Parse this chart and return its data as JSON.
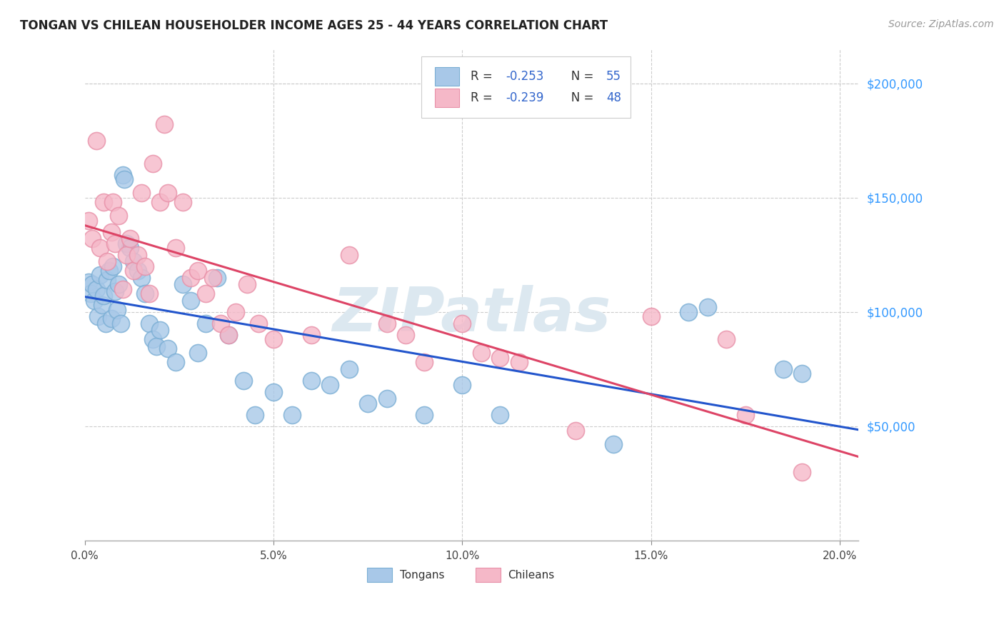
{
  "title": "TONGAN VS CHILEAN HOUSEHOLDER INCOME AGES 25 - 44 YEARS CORRELATION CHART",
  "source": "Source: ZipAtlas.com",
  "xlabel_ticks": [
    "0.0%",
    "5.0%",
    "10.0%",
    "15.0%",
    "20.0%"
  ],
  "xlabel_vals": [
    0.0,
    5.0,
    10.0,
    15.0,
    20.0
  ],
  "ylabel_ticks": [
    "$50,000",
    "$100,000",
    "$150,000",
    "$200,000"
  ],
  "ylabel_vals": [
    50000,
    100000,
    150000,
    200000
  ],
  "xmin": 0.0,
  "xmax": 20.5,
  "ymin": 0,
  "ymax": 215000,
  "tongan_R": -0.253,
  "tongan_N": 55,
  "chilean_R": -0.239,
  "chilean_N": 48,
  "tongan_color": "#a8c8e8",
  "tongan_color_edge": "#7aaed4",
  "chilean_color": "#f5b8c8",
  "chilean_color_edge": "#e890a8",
  "tongan_line_color": "#2255cc",
  "chilean_line_color": "#dd4466",
  "legend_text_color": "#3366cc",
  "watermark_text": "ZIPatlas",
  "watermark_color": "#dce8f0",
  "legend_label_tongan": "Tongans",
  "legend_label_chilean": "Chileans",
  "tongan_x": [
    0.1,
    0.15,
    0.2,
    0.25,
    0.3,
    0.35,
    0.4,
    0.45,
    0.5,
    0.55,
    0.6,
    0.65,
    0.7,
    0.75,
    0.8,
    0.85,
    0.9,
    0.95,
    1.0,
    1.05,
    1.1,
    1.2,
    1.3,
    1.4,
    1.5,
    1.6,
    1.7,
    1.8,
    1.9,
    2.0,
    2.2,
    2.4,
    2.6,
    2.8,
    3.0,
    3.2,
    3.5,
    3.8,
    4.2,
    4.5,
    5.0,
    5.5,
    6.0,
    6.5,
    7.0,
    7.5,
    8.0,
    9.0,
    10.0,
    11.0,
    14.0,
    16.0,
    16.5,
    18.5,
    19.0
  ],
  "tongan_y": [
    113000,
    108000,
    112000,
    105000,
    110000,
    98000,
    116000,
    103000,
    107000,
    95000,
    114000,
    118000,
    97000,
    120000,
    109000,
    101000,
    112000,
    95000,
    160000,
    158000,
    130000,
    128000,
    122000,
    118000,
    115000,
    108000,
    95000,
    88000,
    85000,
    92000,
    84000,
    78000,
    112000,
    105000,
    82000,
    95000,
    115000,
    90000,
    70000,
    55000,
    65000,
    55000,
    70000,
    68000,
    75000,
    60000,
    62000,
    55000,
    68000,
    55000,
    42000,
    100000,
    102000,
    75000,
    73000
  ],
  "chilean_x": [
    0.1,
    0.2,
    0.3,
    0.4,
    0.5,
    0.6,
    0.7,
    0.75,
    0.8,
    0.9,
    1.0,
    1.1,
    1.2,
    1.3,
    1.4,
    1.5,
    1.6,
    1.7,
    1.8,
    2.0,
    2.1,
    2.2,
    2.4,
    2.6,
    2.8,
    3.0,
    3.2,
    3.4,
    3.6,
    3.8,
    4.0,
    4.3,
    4.6,
    5.0,
    6.0,
    7.0,
    8.0,
    8.5,
    9.0,
    10.0,
    10.5,
    11.0,
    11.5,
    13.0,
    15.0,
    17.0,
    17.5,
    19.0
  ],
  "chilean_y": [
    140000,
    132000,
    175000,
    128000,
    148000,
    122000,
    135000,
    148000,
    130000,
    142000,
    110000,
    125000,
    132000,
    118000,
    125000,
    152000,
    120000,
    108000,
    165000,
    148000,
    182000,
    152000,
    128000,
    148000,
    115000,
    118000,
    108000,
    115000,
    95000,
    90000,
    100000,
    112000,
    95000,
    88000,
    90000,
    125000,
    95000,
    90000,
    78000,
    95000,
    82000,
    80000,
    78000,
    48000,
    98000,
    88000,
    55000,
    30000
  ]
}
